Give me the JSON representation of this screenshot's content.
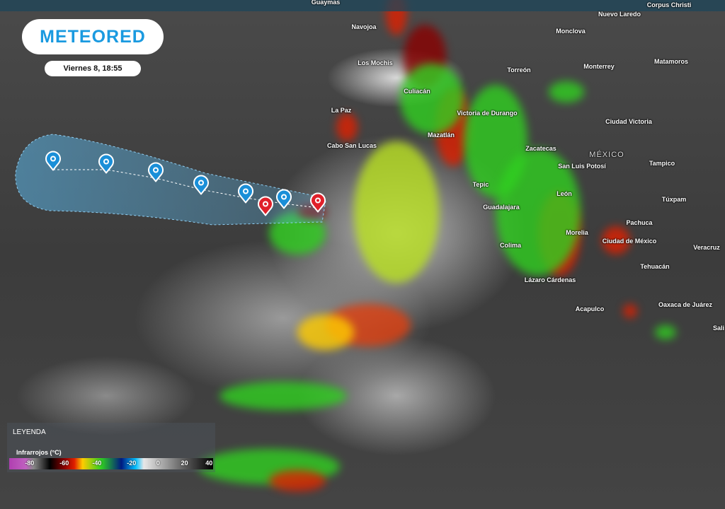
{
  "brand": {
    "logo_text": "METEORED",
    "date_label": "Viernes 8, 18:55"
  },
  "map": {
    "country_label": "MÉXICO",
    "cities": [
      "Guaymas",
      "Corpus Christi",
      "Nuevo Laredo",
      "Navojoa",
      "Monclova",
      "Los Mochis",
      "Matamoros",
      "Torreón",
      "Monterrey",
      "Culiacán",
      "La Paz",
      "Victoria de Durango",
      "Ciudad Victoria",
      "Mazatlán",
      "Cabo San Lucas",
      "Zacatecas",
      "San Luis Potosí",
      "Tampico",
      "Tepic",
      "León",
      "Túxpam",
      "Guadalajara",
      "Pachuca",
      "Morelia",
      "Ciudad de México",
      "Veracruz",
      "Colima",
      "Tehuacán",
      "Lázaro Cárdenas",
      "Acapulco",
      "Oaxaca de Juárez",
      "Sali"
    ]
  },
  "storm_track": {
    "forecast_marker_color": "#1a8fd8",
    "current_marker_color": "#e0202a",
    "cone_color": "#5ab4e6"
  },
  "legend": {
    "title": "LEYENDA",
    "subtitle": "Infrarrojos (°C)",
    "ticks": [
      "-80",
      "-60",
      "-40",
      "-20",
      "0",
      "20",
      "40"
    ]
  }
}
